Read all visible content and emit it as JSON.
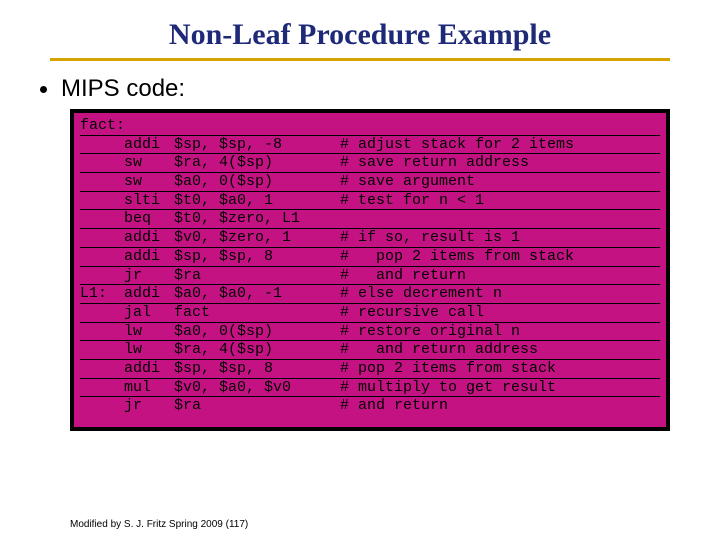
{
  "title": {
    "text": "Non-Leaf Procedure Example",
    "fontsize": 30,
    "color": "#1e2a78"
  },
  "underline_color": "#d6a400",
  "bullet": {
    "text": "MIPS code:",
    "fontsize": 24
  },
  "code": {
    "bg_outer": "#000000",
    "bg_inner": "#c51283",
    "font_family": "Courier New",
    "fontsize": 15,
    "rows": [
      {
        "label": "fact:",
        "op": "",
        "args": "",
        "comment": ""
      },
      {
        "label": "",
        "op": "addi",
        "args": "$sp, $sp, -8",
        "comment": "# adjust stack for 2 items"
      },
      {
        "label": "",
        "op": "sw",
        "args": "$ra, 4($sp)",
        "comment": "# save return address"
      },
      {
        "label": "",
        "op": "sw",
        "args": "$a0, 0($sp)",
        "comment": "# save argument"
      },
      {
        "label": "",
        "op": "slti",
        "args": "$t0, $a0, 1",
        "comment": "# test for n < 1"
      },
      {
        "label": "",
        "op": "beq",
        "args": "$t0, $zero, L1",
        "comment": ""
      },
      {
        "label": "",
        "op": "addi",
        "args": "$v0, $zero, 1",
        "comment": "# if so, result is 1"
      },
      {
        "label": "",
        "op": "addi",
        "args": "$sp, $sp, 8",
        "comment": "#   pop 2 items from stack"
      },
      {
        "label": "",
        "op": "jr",
        "args": "$ra",
        "comment": "#   and return"
      },
      {
        "label": "L1:",
        "op": "addi",
        "args": "$a0, $a0, -1",
        "comment": "# else decrement n"
      },
      {
        "label": "",
        "op": "jal",
        "args": "fact",
        "comment": "# recursive call"
      },
      {
        "label": "",
        "op": "lw",
        "args": "$a0, 0($sp)",
        "comment": "# restore original n"
      },
      {
        "label": "",
        "op": "lw",
        "args": "$ra, 4($sp)",
        "comment": "#   and return address"
      },
      {
        "label": "",
        "op": "addi",
        "args": "$sp, $sp, 8",
        "comment": "# pop 2 items from stack"
      },
      {
        "label": "",
        "op": "mul",
        "args": "$v0, $a0, $v0",
        "comment": "# multiply to get result"
      },
      {
        "label": "",
        "op": "jr",
        "args": "$ra",
        "comment": "# and return"
      }
    ]
  },
  "footer": {
    "text": "Modified by S. J. Fritz  Spring 2009 (117)",
    "fontsize": 10
  }
}
